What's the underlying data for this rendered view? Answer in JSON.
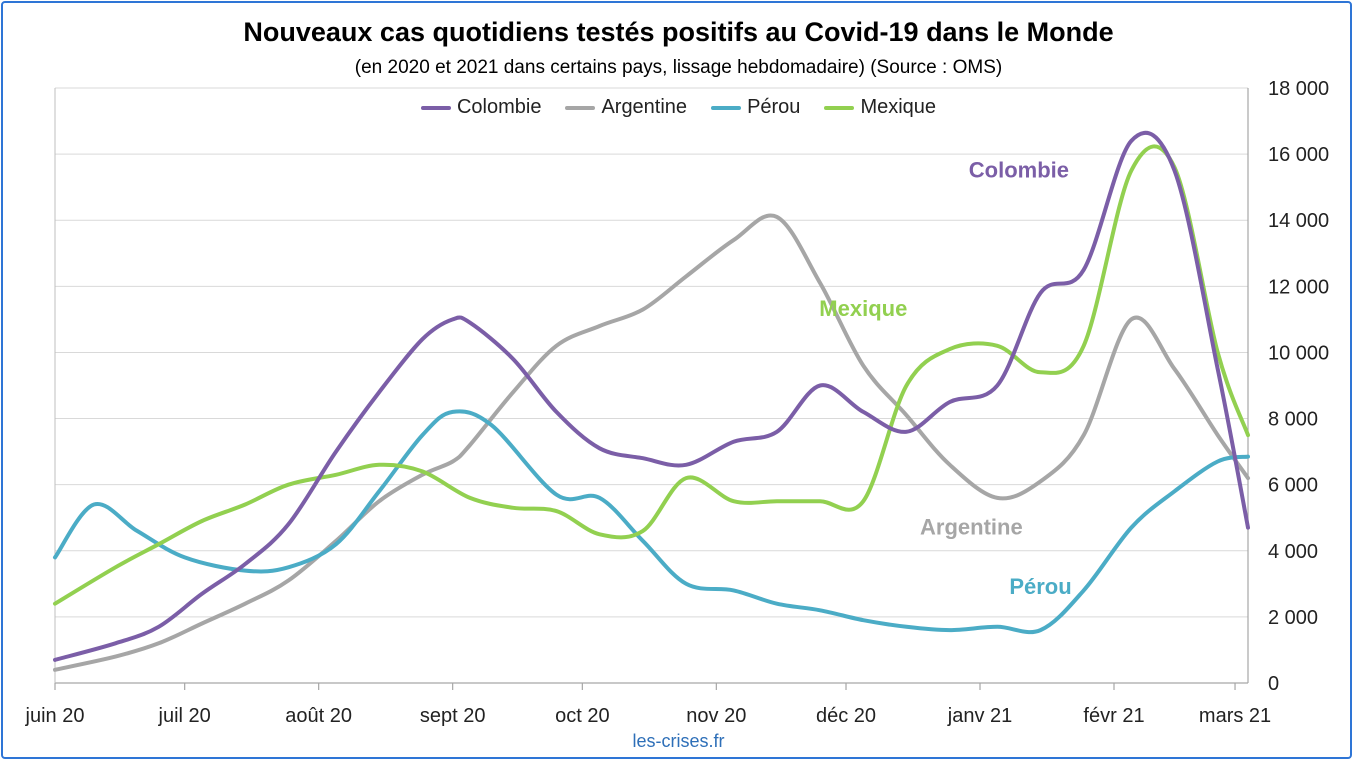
{
  "chart_data": {
    "type": "line",
    "title": "Nouveaux cas quotidiens testés positifs au Covid-19 dans le Monde",
    "subtitle": "(en 2020 et 2021 dans certains pays, lissage hebdomadaire) (Source : OMS)",
    "source": "les-crises.fr",
    "x_ticks": [
      "juin 20",
      "juil 20",
      "août 20",
      "sept 20",
      "oct 20",
      "nov 20",
      "déc 20",
      "janv 21",
      "févr 21",
      "mars 21"
    ],
    "x_range": [
      "2020-06-01",
      "2021-03-04"
    ],
    "y_ticks": [
      "0",
      "2 000",
      "4 000",
      "6 000",
      "8 000",
      "10 000",
      "12 000",
      "14 000",
      "16 000",
      "18 000"
    ],
    "ylim": [
      0,
      18000
    ],
    "y_axis_position": "right",
    "grid": "horizontal",
    "legend_position": "top",
    "series": [
      {
        "name": "Colombie",
        "color": "#7b5ea7",
        "label": "Colombie",
        "label_at": [
          "2021-01-10",
          15300
        ],
        "points": [
          [
            "2020-06-01",
            700
          ],
          [
            "2020-06-15",
            1200
          ],
          [
            "2020-06-25",
            1700
          ],
          [
            "2020-07-05",
            2700
          ],
          [
            "2020-07-15",
            3600
          ],
          [
            "2020-07-25",
            4800
          ],
          [
            "2020-08-05",
            7000
          ],
          [
            "2020-08-15",
            8800
          ],
          [
            "2020-08-25",
            10400
          ],
          [
            "2020-09-01",
            11000
          ],
          [
            "2020-09-05",
            10900
          ],
          [
            "2020-09-15",
            9800
          ],
          [
            "2020-09-25",
            8200
          ],
          [
            "2020-10-05",
            7100
          ],
          [
            "2020-10-15",
            6800
          ],
          [
            "2020-10-25",
            6600
          ],
          [
            "2020-11-05",
            7300
          ],
          [
            "2020-11-15",
            7600
          ],
          [
            "2020-11-25",
            9000
          ],
          [
            "2020-12-05",
            8200
          ],
          [
            "2020-12-15",
            7600
          ],
          [
            "2020-12-25",
            8500
          ],
          [
            "2021-01-05",
            9000
          ],
          [
            "2021-01-15",
            11800
          ],
          [
            "2021-01-25",
            12500
          ],
          [
            "2021-02-05",
            16400
          ],
          [
            "2021-02-15",
            15500
          ],
          [
            "2021-02-25",
            9500
          ],
          [
            "2021-03-04",
            4700
          ]
        ]
      },
      {
        "name": "Argentine",
        "color": "#a6a6a6",
        "label": "Argentine",
        "label_at": [
          "2020-12-30",
          4500
        ],
        "points": [
          [
            "2020-06-01",
            400
          ],
          [
            "2020-06-15",
            800
          ],
          [
            "2020-06-25",
            1200
          ],
          [
            "2020-07-05",
            1800
          ],
          [
            "2020-07-15",
            2400
          ],
          [
            "2020-07-25",
            3100
          ],
          [
            "2020-08-05",
            4300
          ],
          [
            "2020-08-15",
            5500
          ],
          [
            "2020-08-25",
            6300
          ],
          [
            "2020-09-01",
            6700
          ],
          [
            "2020-09-05",
            7200
          ],
          [
            "2020-09-15",
            8800
          ],
          [
            "2020-09-25",
            10200
          ],
          [
            "2020-10-05",
            10800
          ],
          [
            "2020-10-15",
            11300
          ],
          [
            "2020-10-25",
            12300
          ],
          [
            "2020-11-05",
            13400
          ],
          [
            "2020-11-15",
            14100
          ],
          [
            "2020-11-25",
            12100
          ],
          [
            "2020-12-05",
            9600
          ],
          [
            "2020-12-15",
            8100
          ],
          [
            "2020-12-25",
            6600
          ],
          [
            "2021-01-05",
            5600
          ],
          [
            "2021-01-15",
            6100
          ],
          [
            "2021-01-25",
            7500
          ],
          [
            "2021-02-05",
            11000
          ],
          [
            "2021-02-15",
            9500
          ],
          [
            "2021-02-25",
            7500
          ],
          [
            "2021-03-04",
            6200
          ]
        ]
      },
      {
        "name": "Pérou",
        "color": "#4bacc6",
        "label": "Pérou",
        "label_at": [
          "2021-01-15",
          2700
        ],
        "points": [
          [
            "2020-06-01",
            3800
          ],
          [
            "2020-06-10",
            5400
          ],
          [
            "2020-06-20",
            4600
          ],
          [
            "2020-07-01",
            3800
          ],
          [
            "2020-07-15",
            3400
          ],
          [
            "2020-07-25",
            3500
          ],
          [
            "2020-08-05",
            4200
          ],
          [
            "2020-08-15",
            5800
          ],
          [
            "2020-08-25",
            7500
          ],
          [
            "2020-09-01",
            8200
          ],
          [
            "2020-09-10",
            7800
          ],
          [
            "2020-09-25",
            5700
          ],
          [
            "2020-10-05",
            5600
          ],
          [
            "2020-10-15",
            4300
          ],
          [
            "2020-10-25",
            3000
          ],
          [
            "2020-11-05",
            2800
          ],
          [
            "2020-11-15",
            2400
          ],
          [
            "2020-11-25",
            2200
          ],
          [
            "2020-12-05",
            1900
          ],
          [
            "2020-12-15",
            1700
          ],
          [
            "2020-12-25",
            1600
          ],
          [
            "2021-01-05",
            1700
          ],
          [
            "2021-01-15",
            1600
          ],
          [
            "2021-01-25",
            2800
          ],
          [
            "2021-02-05",
            4700
          ],
          [
            "2021-02-15",
            5800
          ],
          [
            "2021-02-25",
            6700
          ],
          [
            "2021-03-04",
            6850
          ]
        ]
      },
      {
        "name": "Mexique",
        "color": "#92d050",
        "label": "Mexique",
        "label_at": [
          "2020-12-05",
          11100
        ],
        "points": [
          [
            "2020-06-01",
            2400
          ],
          [
            "2020-06-15",
            3500
          ],
          [
            "2020-06-25",
            4200
          ],
          [
            "2020-07-05",
            4900
          ],
          [
            "2020-07-15",
            5400
          ],
          [
            "2020-07-25",
            6000
          ],
          [
            "2020-08-05",
            6300
          ],
          [
            "2020-08-15",
            6600
          ],
          [
            "2020-08-25",
            6400
          ],
          [
            "2020-09-05",
            5600
          ],
          [
            "2020-09-15",
            5300
          ],
          [
            "2020-09-25",
            5200
          ],
          [
            "2020-10-05",
            4500
          ],
          [
            "2020-10-15",
            4600
          ],
          [
            "2020-10-25",
            6200
          ],
          [
            "2020-11-05",
            5500
          ],
          [
            "2020-11-15",
            5500
          ],
          [
            "2020-11-25",
            5500
          ],
          [
            "2020-12-05",
            5500
          ],
          [
            "2020-12-15",
            9000
          ],
          [
            "2020-12-25",
            10100
          ],
          [
            "2021-01-05",
            10200
          ],
          [
            "2021-01-15",
            9400
          ],
          [
            "2021-01-25",
            10200
          ],
          [
            "2021-02-05",
            15500
          ],
          [
            "2021-02-15",
            15600
          ],
          [
            "2021-02-25",
            10000
          ],
          [
            "2021-03-04",
            7500
          ]
        ]
      }
    ]
  }
}
